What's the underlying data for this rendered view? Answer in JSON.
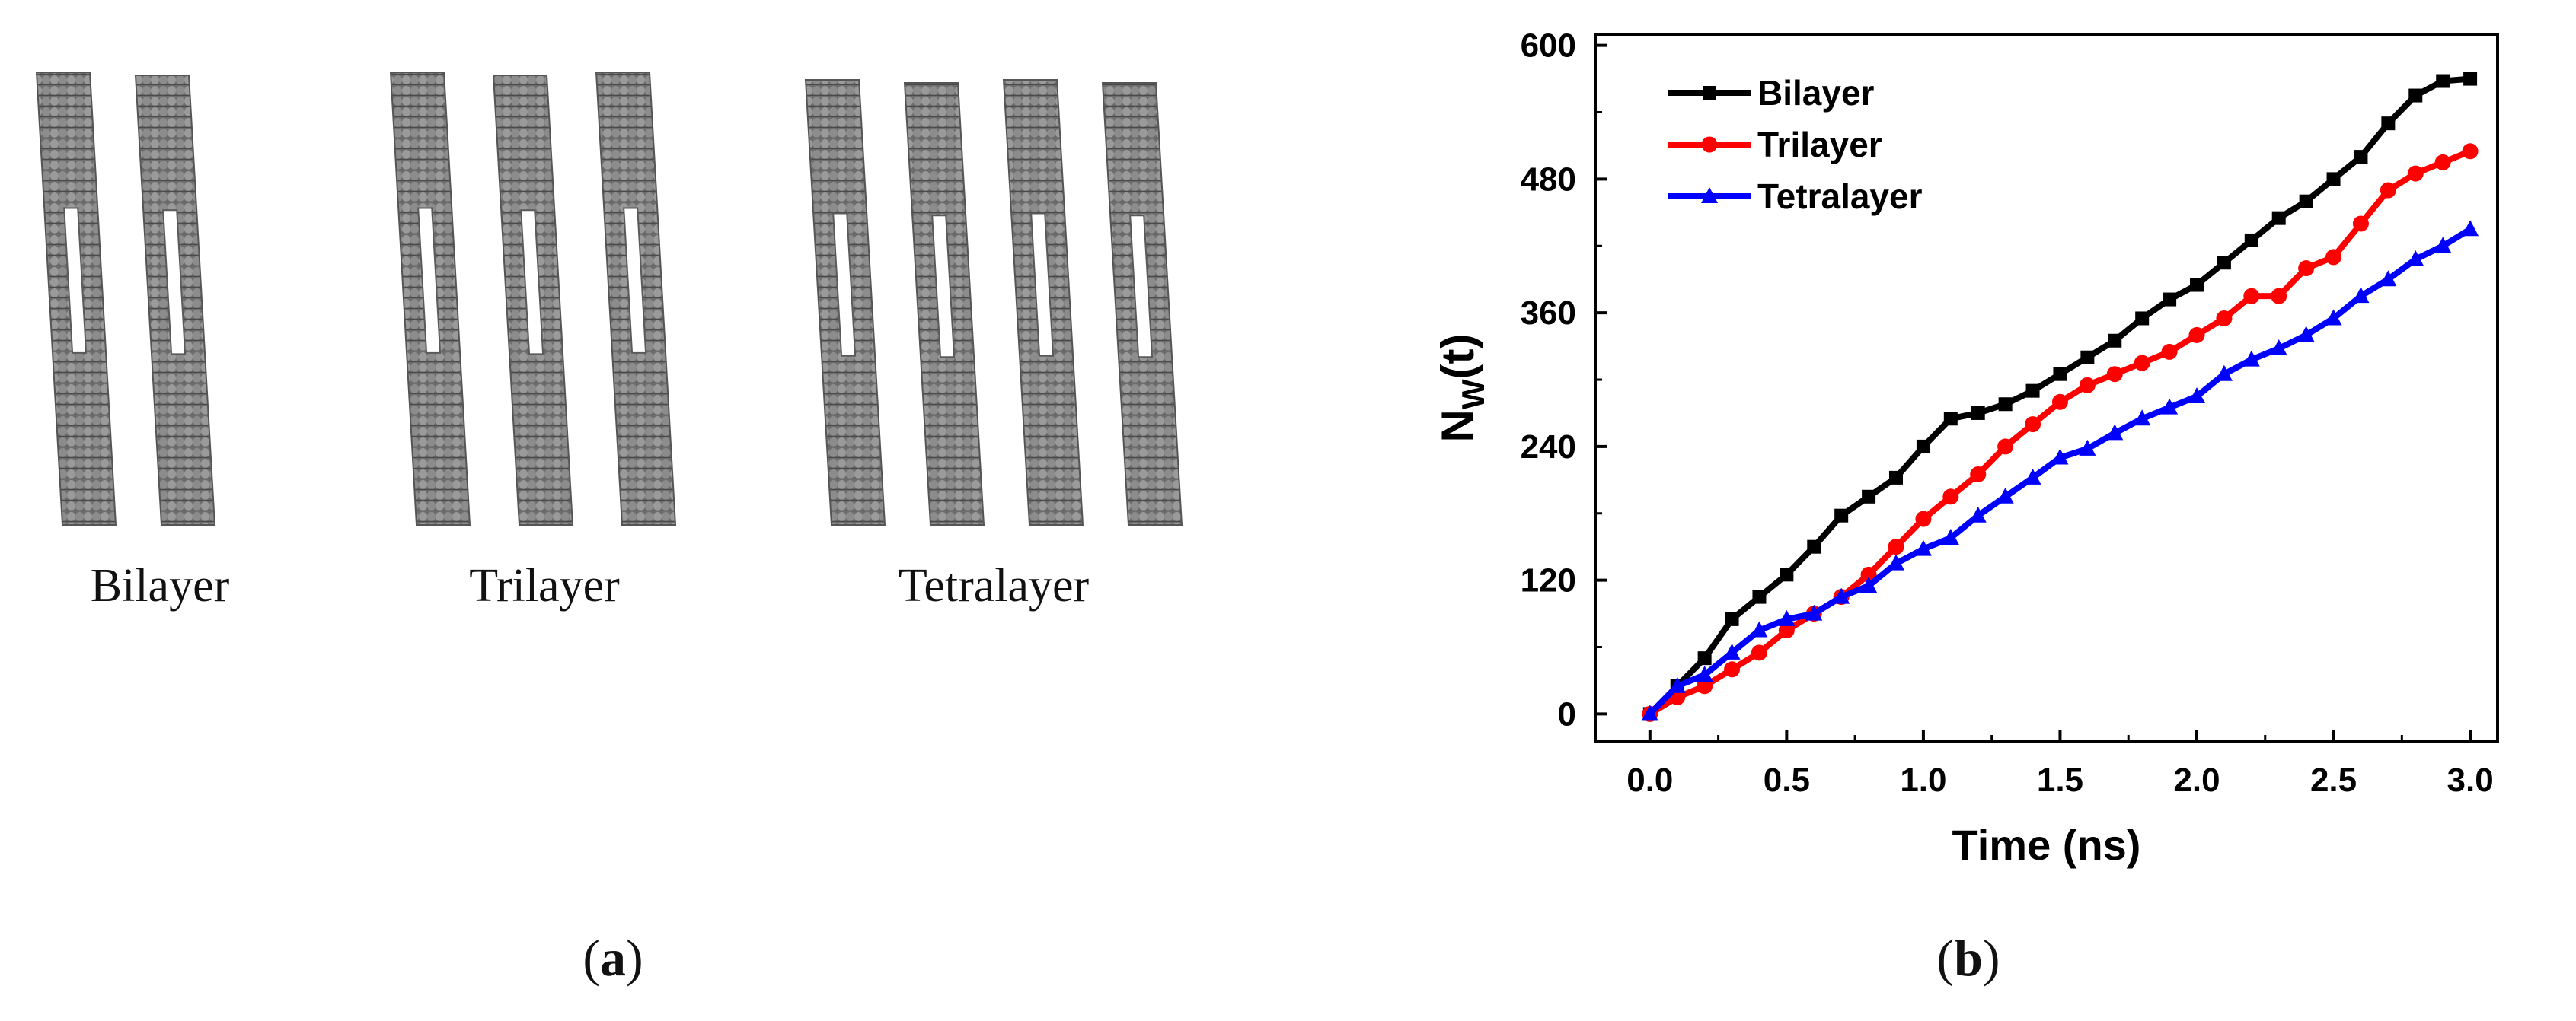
{
  "panel_a": {
    "groups": [
      {
        "label": "Bilayer",
        "sheet_count": 2
      },
      {
        "label": "Trilayer",
        "sheet_count": 3
      },
      {
        "label": "Tetralayer",
        "sheet_count": 4
      }
    ],
    "caption": {
      "open": "(",
      "letter": "a",
      "close": ")"
    }
  },
  "panel_b": {
    "caption": {
      "open": "(",
      "letter": "b",
      "close": ")"
    }
  },
  "chart_data": {
    "type": "line",
    "title": "",
    "xlabel": "Time (ns)",
    "ylabel": {
      "main": "N",
      "sub": "W",
      "rest": "(t)"
    },
    "xlim": [
      -0.2,
      3.1
    ],
    "ylim": [
      -25,
      610
    ],
    "xticks": [
      0.0,
      0.5,
      1.0,
      1.5,
      2.0,
      2.5,
      3.0
    ],
    "xtick_labels": [
      "0.0",
      "0.5",
      "1.0",
      "1.5",
      "2.0",
      "2.5",
      "3.0"
    ],
    "yticks": [
      0,
      120,
      240,
      360,
      480,
      600
    ],
    "ytick_labels": [
      "0",
      "120",
      "240",
      "360",
      "480",
      "600"
    ],
    "legend_position": "top-left",
    "x": [
      0.0,
      0.1,
      0.2,
      0.3,
      0.4,
      0.5,
      0.6,
      0.7,
      0.8,
      0.9,
      1.0,
      1.1,
      1.2,
      1.3,
      1.4,
      1.5,
      1.6,
      1.7,
      1.8,
      1.9,
      2.0,
      2.1,
      2.2,
      2.3,
      2.4,
      2.5,
      2.6,
      2.7,
      2.8,
      2.9,
      3.0
    ],
    "series": [
      {
        "name": "Bilayer",
        "color": "#000000",
        "marker": "square",
        "values": [
          0,
          25,
          50,
          85,
          105,
          125,
          150,
          178,
          195,
          212,
          240,
          265,
          270,
          278,
          290,
          305,
          320,
          335,
          355,
          372,
          385,
          405,
          425,
          445,
          460,
          480,
          500,
          530,
          555,
          568,
          570
        ]
      },
      {
        "name": "Trilayer",
        "color": "#ff0000",
        "marker": "circle",
        "values": [
          0,
          15,
          25,
          40,
          55,
          75,
          90,
          105,
          125,
          150,
          175,
          195,
          215,
          240,
          260,
          280,
          295,
          305,
          315,
          325,
          340,
          355,
          375,
          375,
          400,
          410,
          440,
          470,
          485,
          495,
          505
        ]
      },
      {
        "name": "Tetralayer",
        "color": "#0000ff",
        "marker": "triangle",
        "values": [
          0,
          25,
          35,
          55,
          75,
          85,
          90,
          105,
          115,
          135,
          148,
          158,
          178,
          195,
          212,
          230,
          238,
          252,
          265,
          275,
          285,
          305,
          318,
          328,
          340,
          355,
          375,
          390,
          408,
          420,
          435
        ]
      }
    ]
  }
}
